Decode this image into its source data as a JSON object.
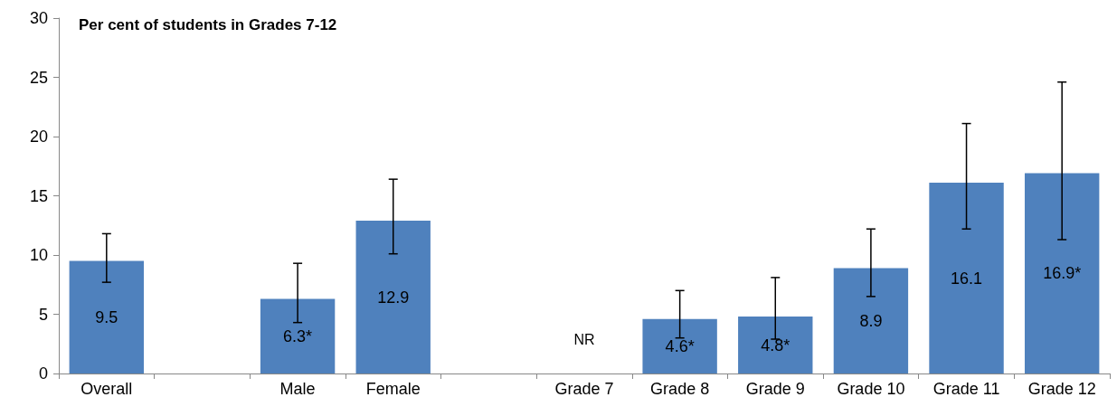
{
  "chart_data": {
    "type": "bar",
    "title": "Per cent of students in Grades 7-12",
    "categories": [
      "Overall",
      null,
      "Male",
      "Female",
      null,
      "Grade 7",
      "Grade 8",
      "Grade 9",
      "Grade 10",
      "Grade 11",
      "Grade 12"
    ],
    "values": [
      9.5,
      null,
      6.3,
      12.9,
      null,
      null,
      4.6,
      4.8,
      8.9,
      16.1,
      16.9
    ],
    "value_labels": [
      "9.5",
      null,
      "6.3*",
      "12.9",
      null,
      "NR",
      "4.6*",
      "4.8*",
      "8.9",
      "16.1",
      "16.9*"
    ],
    "errors": [
      [
        7.7,
        11.8
      ],
      null,
      [
        4.3,
        9.3
      ],
      [
        10.1,
        16.4
      ],
      null,
      null,
      [
        3.0,
        7.0
      ],
      [
        2.9,
        8.1
      ],
      [
        6.5,
        12.2
      ],
      [
        12.2,
        21.1
      ],
      [
        11.3,
        24.6
      ]
    ],
    "color": "#4f81bd",
    "ylim": [
      0,
      30
    ],
    "yticks": [
      0,
      5,
      10,
      15,
      20,
      25,
      30
    ],
    "grid": false
  }
}
